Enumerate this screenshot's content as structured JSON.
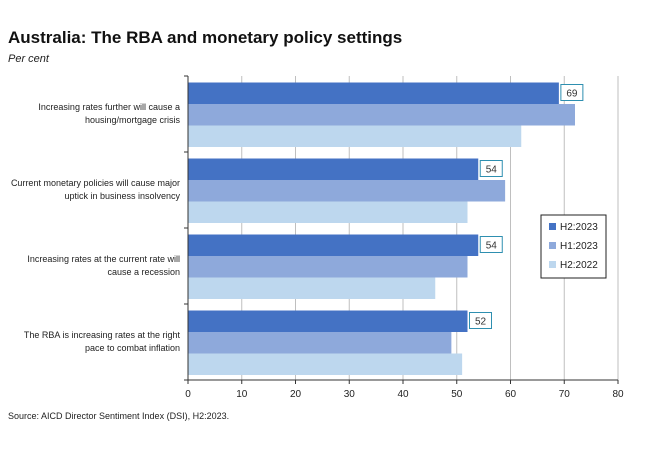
{
  "title": "Australia: The RBA and monetary policy settings",
  "subtitle": "Per cent",
  "source": "Source: AICD Director Sentiment Index (DSI), H2:2023.",
  "colors": {
    "H2:2023": "#4472c4",
    "H1:2023": "#8ea9db",
    "H2:2022": "#bdd7ee",
    "grid": "#bfbfbf",
    "axis": "#333333",
    "label_border": "#2e8fb0"
  },
  "chart_data": {
    "type": "bar",
    "orientation": "horizontal",
    "categories": [
      [
        "Increasing rates further will cause a",
        "housing/mortgage crisis"
      ],
      [
        "Current monetary policies will cause major",
        "uptick in business insolvency"
      ],
      [
        "Increasing rates at the current rate will",
        "cause a recession"
      ],
      [
        "The RBA is increasing rates at the right",
        "pace to combat inflation"
      ]
    ],
    "series": [
      {
        "name": "H2:2023",
        "values": [
          69,
          54,
          54,
          52
        ]
      },
      {
        "name": "H1:2023",
        "values": [
          72,
          59,
          52,
          49
        ]
      },
      {
        "name": "H2:2022",
        "values": [
          62,
          52,
          46,
          51
        ]
      }
    ],
    "data_labels": {
      "series": "H2:2023",
      "values": [
        "69",
        "54",
        "54",
        "52"
      ]
    },
    "xlim": [
      0,
      80
    ],
    "xticks": [
      "0",
      "10",
      "20",
      "30",
      "40",
      "50",
      "60",
      "70",
      "80"
    ],
    "grid": true,
    "legend_position": "right"
  }
}
